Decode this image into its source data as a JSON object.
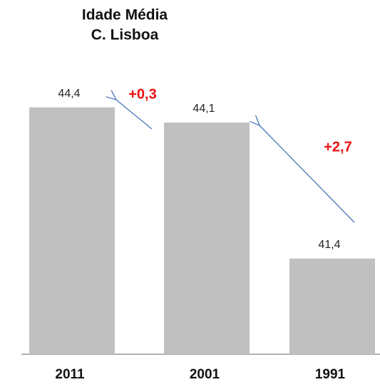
{
  "chart_data": {
    "type": "bar",
    "title": "Idade Média",
    "subtitle": "C. Lisboa",
    "categories": [
      "2011",
      "2001",
      "1991"
    ],
    "values": [
      44.4,
      44.1,
      41.4
    ],
    "value_labels": [
      "44,4",
      "44,1",
      "41,4"
    ],
    "color": "#c0c0c0",
    "ylim": [
      39.5,
      45.5
    ],
    "annotations": [
      "+0,3",
      "+2,7"
    ]
  }
}
